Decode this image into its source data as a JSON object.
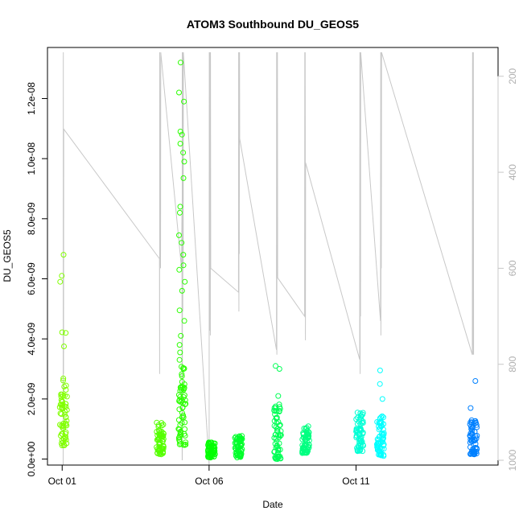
{
  "chart_data": {
    "type": "scatter",
    "title": "ATOM3 Southbound DU_GEOS5",
    "xlabel": "Date",
    "ylabel": "DU_GEOS5",
    "xlim": [
      "2016-09-30T12:00",
      "2016-10-15T20:00"
    ],
    "ylim": [
      -2e-10,
      1.37e-08
    ],
    "x_ticks": [
      {
        "date": "2016-10-01",
        "label": "Oct 01"
      },
      {
        "date": "2016-10-06",
        "label": "Oct 06"
      },
      {
        "date": "2016-10-11",
        "label": "Oct 11"
      }
    ],
    "y_ticks": [
      {
        "value": 0,
        "label": "0.0e+00"
      },
      {
        "value": 2e-09,
        "label": "2.0e-09"
      },
      {
        "value": 4e-09,
        "label": "4.0e-09"
      },
      {
        "value": 6e-09,
        "label": "6.0e-09"
      },
      {
        "value": 8e-09,
        "label": "8.0e-09"
      },
      {
        "value": 1e-08,
        "label": "1.0e-08"
      },
      {
        "value": 1.2e-08,
        "label": "1.2e-08"
      }
    ],
    "right_axis": {
      "inverted": true,
      "ylim": [
        1010,
        140
      ],
      "ticks": [
        {
          "value": 200,
          "label": "200"
        },
        {
          "value": 400,
          "label": "400"
        },
        {
          "value": 600,
          "label": "600"
        },
        {
          "value": 800,
          "label": "800"
        },
        {
          "value": 1000,
          "label": "1000"
        }
      ],
      "color": "#c8c8c8"
    },
    "grid": false,
    "legend": "none",
    "clusters": [
      {
        "time": "2016-10-01T01:00",
        "color": "#80ff00",
        "low": 4.5e-10,
        "high": 2.7e-09,
        "outliers": [
          3.75e-09,
          4.2e-09,
          4.22e-09,
          5.9e-09,
          6.1e-09,
          6.8e-09
        ]
      },
      {
        "time": "2016-10-04T08:00",
        "color": "#55ff00",
        "low": 1.5e-10,
        "high": 1.25e-09,
        "outliers": []
      },
      {
        "time": "2016-10-05T02:00",
        "color": "#2bff00",
        "low": 4.5e-10,
        "high": 3.1e-09,
        "outliers": [
          3.3e-09,
          3.55e-09,
          3.8e-09,
          4.1e-09,
          4.6e-09,
          4.95e-09,
          5.6e-09,
          5.9e-09,
          6.3e-09,
          6.45e-09,
          6.8e-09,
          7.2e-09,
          7.45e-09,
          8.2e-09,
          8.4e-09,
          9.35e-09,
          9.9e-09,
          1.02e-08,
          1.05e-08,
          1.08e-08,
          1.09e-08,
          1.19e-08,
          1.22e-08,
          1.32e-08
        ]
      },
      {
        "time": "2016-10-06T02:00",
        "color": "#00ff00",
        "low": 5e-11,
        "high": 5.8e-10,
        "outliers": []
      },
      {
        "time": "2016-10-07T00:00",
        "color": "#00ff2b",
        "low": 5e-11,
        "high": 7.8e-10,
        "outliers": []
      },
      {
        "time": "2016-10-08T08:00",
        "color": "#00ff55",
        "low": 0.0,
        "high": 1.9e-09,
        "outliers": [
          2.1e-09,
          3e-09,
          3.1e-09
        ]
      },
      {
        "time": "2016-10-09T07:00",
        "color": "#00ff80",
        "low": 2e-10,
        "high": 1.15e-09,
        "outliers": []
      },
      {
        "time": "2016-10-11T03:00",
        "color": "#00ffd5",
        "low": 2.5e-10,
        "high": 1.6e-09,
        "outliers": []
      },
      {
        "time": "2016-10-11T20:00",
        "color": "#00ffff",
        "low": 1e-10,
        "high": 1.5e-09,
        "outliers": [
          2e-09,
          2.5e-09,
          2.95e-09
        ]
      },
      {
        "time": "2016-10-15T00:00",
        "color": "#0080ff",
        "low": 1.5e-10,
        "high": 1.35e-09,
        "outliers": [
          1.7e-09,
          2.6e-09
        ]
      }
    ],
    "profile_series": {
      "name": "",
      "axis": "right",
      "color": "#c8c8c8",
      "points": [
        [
          "2016-10-01T00:50",
          1010
        ],
        [
          "2016-10-01T00:55",
          150
        ],
        [
          "2016-10-01T01:00",
          820
        ],
        [
          "2016-10-01T01:05",
          460
        ],
        [
          "2016-10-01T01:10",
          820
        ],
        [
          "2016-10-01T01:15",
          310
        ],
        [
          "2016-10-04T07:30",
          580
        ],
        [
          "2016-10-04T07:35",
          820
        ],
        [
          "2016-10-04T07:40",
          150
        ],
        [
          "2016-10-04T08:20",
          600
        ],
        [
          "2016-10-04T08:25",
          520
        ],
        [
          "2016-10-04T08:30",
          150
        ],
        [
          "2016-10-05T01:30",
          600
        ],
        [
          "2016-10-05T01:50",
          490
        ],
        [
          "2016-10-05T02:00",
          1000
        ],
        [
          "2016-10-05T02:05",
          150
        ],
        [
          "2016-10-05T02:10",
          1000
        ],
        [
          "2016-10-05T02:20",
          300
        ],
        [
          "2016-10-05T02:30",
          690
        ],
        [
          "2016-10-05T02:40",
          150
        ],
        [
          "2016-10-05T02:50",
          600
        ],
        [
          "2016-10-05T03:00",
          150
        ],
        [
          "2016-10-06T00:00",
          1010
        ],
        [
          "2016-10-06T00:10",
          150
        ],
        [
          "2016-10-06T00:20",
          680
        ],
        [
          "2016-10-06T00:30",
          150
        ],
        [
          "2016-10-06T00:40",
          730
        ],
        [
          "2016-10-06T00:50",
          300
        ],
        [
          "2016-10-06T01:00",
          740
        ],
        [
          "2016-10-06T01:10",
          150
        ],
        [
          "2016-10-06T01:20",
          600
        ],
        [
          "2016-10-07T00:00",
          650
        ],
        [
          "2016-10-07T00:10",
          150
        ],
        [
          "2016-10-07T00:20",
          690
        ],
        [
          "2016-10-07T00:30",
          150
        ],
        [
          "2016-10-07T00:40",
          570
        ],
        [
          "2016-10-07T00:50",
          150
        ],
        [
          "2016-10-07T01:00",
          330
        ],
        [
          "2016-10-08T07:00",
          770
        ],
        [
          "2016-10-08T07:10",
          150
        ],
        [
          "2016-10-08T07:20",
          780
        ],
        [
          "2016-10-08T07:30",
          150
        ],
        [
          "2016-10-08T07:40",
          500
        ],
        [
          "2016-10-08T07:50",
          150
        ],
        [
          "2016-10-08T08:00",
          620
        ],
        [
          "2016-10-09T06:00",
          700
        ],
        [
          "2016-10-09T06:10",
          150
        ],
        [
          "2016-10-09T06:20",
          680
        ],
        [
          "2016-10-09T06:30",
          150
        ],
        [
          "2016-10-09T06:40",
          750
        ],
        [
          "2016-10-09T06:50",
          380
        ],
        [
          "2016-10-11T03:00",
          790
        ],
        [
          "2016-10-11T03:10",
          150
        ],
        [
          "2016-10-11T03:20",
          820
        ],
        [
          "2016-10-11T03:30",
          150
        ],
        [
          "2016-10-11T03:40",
          700
        ],
        [
          "2016-10-11T03:50",
          150
        ],
        [
          "2016-10-11T20:00",
          710
        ],
        [
          "2016-10-11T20:10",
          150
        ],
        [
          "2016-10-11T20:20",
          740
        ],
        [
          "2016-10-11T20:30",
          150
        ],
        [
          "2016-10-11T20:40",
          600
        ],
        [
          "2016-10-11T20:50",
          150
        ],
        [
          "2016-10-14T23:00",
          780
        ],
        [
          "2016-10-14T23:10",
          150
        ],
        [
          "2016-10-14T23:20",
          760
        ],
        [
          "2016-10-14T23:30",
          150
        ],
        [
          "2016-10-14T23:40",
          780
        ],
        [
          "2016-10-14T23:50",
          150
        ],
        [
          "2016-10-15T00:00",
          780
        ]
      ]
    }
  }
}
